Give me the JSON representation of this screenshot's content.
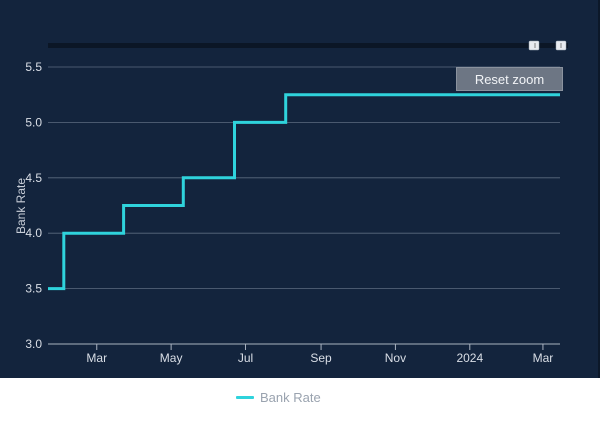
{
  "controls": {
    "reset_zoom_label": "Reset zoom"
  },
  "colors": {
    "background": "#13243d",
    "series": "#2fd3dc",
    "grid": "#5c6b80",
    "navigator": "#0b1626"
  },
  "chart_data": {
    "type": "line",
    "step": true,
    "title": "",
    "xlabel": "",
    "ylabel": "Bank Rate",
    "ylim": [
      3.0,
      5.5
    ],
    "yticks": [
      "3.0",
      "3.5",
      "4.0",
      "4.5",
      "5.0",
      "5.5"
    ],
    "xlim": [
      "2023-01-20",
      "2024-03-15"
    ],
    "xticks": [
      {
        "date": "2023-03-01",
        "label": "Mar"
      },
      {
        "date": "2023-05-01",
        "label": "May"
      },
      {
        "date": "2023-07-01",
        "label": "Jul"
      },
      {
        "date": "2023-09-01",
        "label": "Sep"
      },
      {
        "date": "2023-11-01",
        "label": "Nov"
      },
      {
        "date": "2024-01-01",
        "label": "2024"
      },
      {
        "date": "2024-03-01",
        "label": "Mar"
      }
    ],
    "grid": true,
    "legend": "bottom",
    "series": [
      {
        "name": "Bank Rate",
        "points": [
          {
            "x": "2023-01-20",
            "y": 3.5
          },
          {
            "x": "2023-02-02",
            "y": 4.0
          },
          {
            "x": "2023-03-23",
            "y": 4.25
          },
          {
            "x": "2023-05-11",
            "y": 4.5
          },
          {
            "x": "2023-06-22",
            "y": 5.0
          },
          {
            "x": "2023-08-03",
            "y": 5.25
          },
          {
            "x": "2024-03-15",
            "y": 5.25
          }
        ]
      }
    ]
  }
}
